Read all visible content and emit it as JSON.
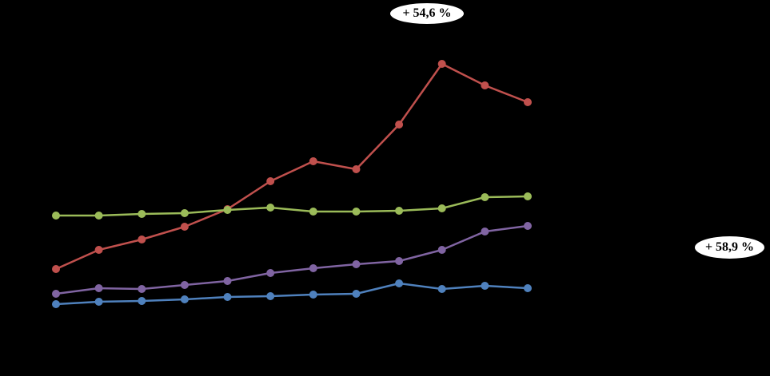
{
  "annotations": [
    {
      "label": "+ 54,6 %"
    },
    {
      "label": "+ 58,9 %"
    }
  ],
  "chart_data": {
    "type": "line",
    "title": "",
    "x": [
      1,
      2,
      3,
      4,
      5,
      6,
      7,
      8,
      9,
      10,
      11,
      12
    ],
    "axes_visible": false,
    "grid": false,
    "legend": "none",
    "background": "#000000",
    "ylim": [
      0,
      471
    ],
    "series": [
      {
        "name": "red",
        "color": "#C0504D",
        "values": [
          134,
          158,
          171,
          187,
          209,
          244,
          269,
          259,
          315,
          391,
          364,
          343
        ]
      },
      {
        "name": "green",
        "color": "#9BBB59",
        "values": [
          201,
          201,
          203,
          204,
          208,
          211,
          206,
          206,
          207,
          210,
          224,
          225
        ]
      },
      {
        "name": "purple",
        "color": "#8064A2",
        "values": [
          103,
          110,
          109,
          114,
          119,
          129,
          135,
          140,
          144,
          158,
          181,
          188
        ]
      },
      {
        "name": "blue",
        "color": "#4F81BD",
        "values": [
          90,
          93,
          94,
          96,
          99,
          100,
          102,
          103,
          116,
          109,
          113,
          110
        ]
      }
    ],
    "plot": {
      "x_start": 70,
      "x_end": 660,
      "y_base": 471
    },
    "annotation_labels": [
      "+ 54,6 %",
      "+ 58,9 %"
    ]
  }
}
